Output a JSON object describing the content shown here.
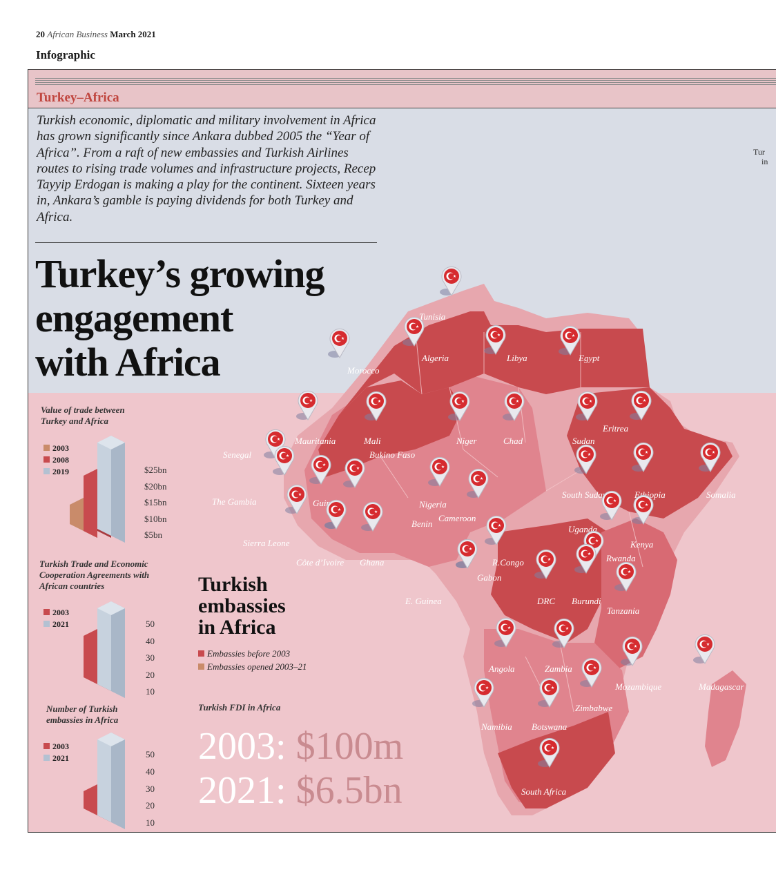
{
  "folio": {
    "page": "20",
    "publication": "African Business",
    "date": "March 2021"
  },
  "section": "Infographic",
  "kicker": "Turkey–Africa",
  "standfirst": "Turkish economic, diplomatic and military involvement in Africa has grown significantly since Ankara dubbed 2005 the “Year of Africa”. From a raft of new embassies and Turkish Airlines routes to rising trade volumes and infrastructure projects, Recep Tayyip Erdogan is making a play for the continent. Sixteen years in, Ankara’s gamble is paying dividends for both Turkey and Africa.",
  "headline": [
    "Turkey’s growing",
    "engagement",
    "with Africa"
  ],
  "edge_text": [
    "Tur",
    "in"
  ],
  "colors": {
    "red": "#c84a4e",
    "mid_red": "#d8707a",
    "pink": "#e69aa3",
    "tan": "#c98b6a",
    "blue_bar": "#b3c1d2",
    "pin_red": "#d62b2f"
  },
  "panels": [
    {
      "title": "Value of trade between Turkey and Africa",
      "legend": [
        {
          "label": "2003",
          "color": "#c98b6a"
        },
        {
          "label": "2008",
          "color": "#c84a4e"
        },
        {
          "label": "2019",
          "color": "#b3c1d2"
        }
      ],
      "ticks": [
        "$25bn",
        "$20bn",
        "$15bn",
        "$10bn",
        "$5bn"
      ]
    },
    {
      "title": "Turkish Trade and Economic Cooperation Agreements with African countries",
      "legend": [
        {
          "label": "2003",
          "color": "#c84a4e"
        },
        {
          "label": "2021",
          "color": "#b3c1d2"
        }
      ],
      "ticks": [
        "50",
        "40",
        "30",
        "20",
        "10"
      ]
    },
    {
      "title": "Number of Turkish embassies in Africa",
      "legend": [
        {
          "label": "2003",
          "color": "#c84a4e"
        },
        {
          "label": "2021",
          "color": "#b3c1d2"
        }
      ],
      "ticks": [
        "50",
        "40",
        "30",
        "20",
        "10"
      ]
    }
  ],
  "embassies": {
    "title": [
      "Turkish",
      "embassies",
      "in Africa"
    ],
    "legend": [
      {
        "label": "Embassies before 2003",
        "color": "#c84a4e"
      },
      {
        "label": "Embassies opened 2003–21",
        "color": "#c98b6a"
      }
    ]
  },
  "fdi": {
    "title": "Turkish FDI in Africa",
    "rows": [
      {
        "year": "2003:",
        "value": "$100m"
      },
      {
        "year": "2021:",
        "value": "$6.5bn"
      }
    ]
  },
  "countries": [
    "Tunisia",
    "Morocco",
    "Algeria",
    "Libya",
    "Egypt",
    "Mauritania",
    "Mali",
    "Niger",
    "Chad",
    "Sudan",
    "Eritrea",
    "Senegal",
    "Bukino Faso",
    "The Gambia",
    "Guinea",
    "Nigeria",
    "Benin",
    "Cameroon",
    "South Sudan",
    "Ethiopia",
    "Somalia",
    "Sierra Leone",
    "Côte d’Ivoire",
    "Ghana",
    "Uganda",
    "Kenya",
    "Rwanda",
    "R.Congo",
    "Gabon",
    "DRC",
    "Burundi",
    "Tanzania",
    "E. Guinea",
    "Angola",
    "Zambia",
    "Mozambique",
    "Madagascar",
    "Zimbabwe",
    "Namibia",
    "Botswana",
    "South Africa"
  ]
}
